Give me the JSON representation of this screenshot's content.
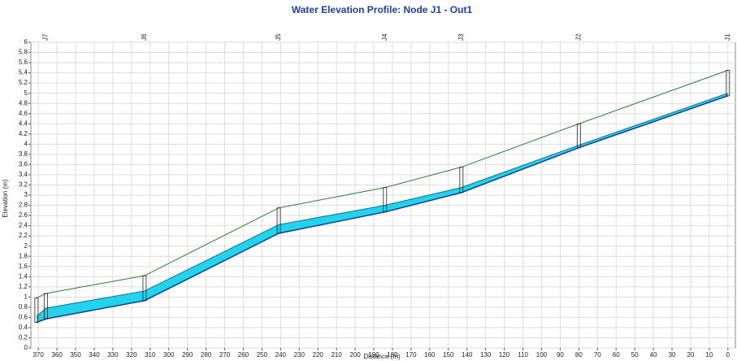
{
  "chart_data": {
    "type": "profile",
    "title": "Water Elevation Profile: Node J1 - Out1",
    "xlabel": "Distance (m)",
    "ylabel": "Elevation (m)",
    "x": [
      371,
      366,
      313,
      241,
      184,
      143,
      80,
      0
    ],
    "node_labels": [
      null,
      "J7",
      "J6",
      "J5",
      "J4",
      "J3",
      "J2",
      "J1"
    ],
    "series": [
      {
        "color": "#2e7d32",
        "values": [
          0.98,
          1.07,
          1.42,
          2.75,
          3.15,
          3.55,
          4.4,
          5.45
        ]
      },
      {
        "color": "#22d3ee",
        "values": [
          0.62,
          0.78,
          1.12,
          2.42,
          2.8,
          3.15,
          3.98,
          5.0
        ]
      },
      {
        "color": "#1e3a8a",
        "values": [
          0.5,
          0.57,
          0.93,
          2.25,
          2.67,
          3.05,
          3.93,
          4.95
        ]
      }
    ],
    "xlim": [
      374,
      -4
    ],
    "xticks": [
      370,
      360,
      350,
      340,
      330,
      320,
      310,
      300,
      290,
      280,
      270,
      260,
      250,
      240,
      230,
      220,
      210,
      200,
      190,
      180,
      170,
      160,
      150,
      140,
      130,
      120,
      110,
      100,
      90,
      80,
      70,
      60,
      50,
      40,
      30,
      20,
      10,
      0
    ],
    "ylim": [
      0,
      6
    ],
    "yticks": [
      0,
      0.2,
      0.4,
      0.6,
      0.8,
      1,
      1.2,
      1.4,
      1.6,
      1.8,
      2,
      2.2,
      2.4,
      2.6,
      2.8,
      3,
      3.2,
      3.4,
      3.6,
      3.8,
      4,
      4.2,
      4.4,
      4.6,
      4.8,
      5,
      5.2,
      5.4,
      5.6,
      5.8,
      6
    ],
    "grid": true
  }
}
